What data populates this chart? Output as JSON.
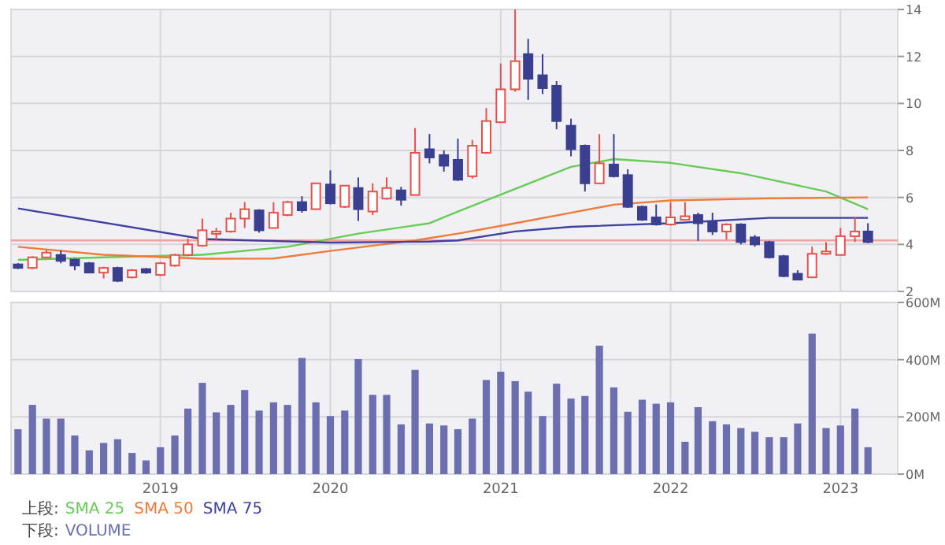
{
  "chart_data": [
    {
      "type": "candlestick",
      "annotations": [
        "上段:"
      ],
      "legend": "bottom",
      "grid": true,
      "tick_labels": "y",
      "xlim": [
        "2018-02-14",
        "2023-05-04"
      ],
      "xticks": [
        {
          "value": "2019-01",
          "label": null
        },
        {
          "value": "2020-01",
          "label": null
        },
        {
          "value": "2021-01",
          "label": null
        },
        {
          "value": "2022-01",
          "label": null
        },
        {
          "value": "2023-01",
          "label": null
        }
      ],
      "ylim": [
        2,
        14
      ],
      "yticks": [
        2,
        4,
        6,
        8,
        10,
        12,
        14
      ],
      "ref_lines": [
        {
          "axis": "y",
          "value": 4.17,
          "color": "#f4a0a0"
        }
      ],
      "x": [
        "2018-03",
        "2018-04",
        "2018-05",
        "2018-06",
        "2018-07",
        "2018-08",
        "2018-09",
        "2018-10",
        "2018-11",
        "2018-12",
        "2019-01",
        "2019-02",
        "2019-03",
        "2019-04",
        "2019-05",
        "2019-06",
        "2019-07",
        "2019-08",
        "2019-09",
        "2019-10",
        "2019-11",
        "2019-12",
        "2020-01",
        "2020-02",
        "2020-03",
        "2020-04",
        "2020-05",
        "2020-06",
        "2020-07",
        "2020-08",
        "2020-09",
        "2020-10",
        "2020-11",
        "2020-12",
        "2021-01",
        "2021-02",
        "2021-03",
        "2021-04",
        "2021-05",
        "2021-06",
        "2021-07",
        "2021-08",
        "2021-09",
        "2021-10",
        "2021-11",
        "2021-12",
        "2022-01",
        "2022-02",
        "2022-03",
        "2022-04",
        "2022-05",
        "2022-06",
        "2022-07",
        "2022-08",
        "2022-09",
        "2022-10",
        "2022-11",
        "2022-12",
        "2023-01",
        "2023-02",
        "2023-03"
      ],
      "ohlc": [
        [
          3.15,
          3.2,
          2.95,
          3.0
        ],
        [
          3.0,
          3.5,
          2.95,
          3.45
        ],
        [
          3.45,
          3.75,
          3.4,
          3.65
        ],
        [
          3.55,
          3.75,
          3.2,
          3.3
        ],
        [
          3.35,
          3.4,
          2.9,
          3.1
        ],
        [
          3.2,
          3.25,
          2.8,
          2.8
        ],
        [
          2.8,
          3.05,
          2.55,
          3.0
        ],
        [
          3.0,
          3.05,
          2.4,
          2.45
        ],
        [
          2.6,
          2.95,
          2.55,
          2.9
        ],
        [
          2.95,
          3.0,
          2.75,
          2.8
        ],
        [
          2.7,
          3.25,
          2.65,
          3.2
        ],
        [
          3.1,
          3.6,
          3.05,
          3.55
        ],
        [
          3.55,
          4.25,
          3.5,
          4.0
        ],
        [
          3.95,
          5.1,
          3.9,
          4.6
        ],
        [
          4.45,
          4.7,
          4.2,
          4.55
        ],
        [
          4.55,
          5.35,
          4.5,
          5.1
        ],
        [
          5.1,
          5.8,
          4.7,
          5.5
        ],
        [
          5.45,
          5.5,
          4.5,
          4.6
        ],
        [
          4.7,
          5.8,
          4.7,
          5.35
        ],
        [
          5.25,
          5.85,
          5.2,
          5.8
        ],
        [
          5.8,
          6.05,
          5.35,
          5.45
        ],
        [
          5.5,
          6.6,
          5.5,
          6.6
        ],
        [
          6.55,
          7.15,
          5.7,
          5.75
        ],
        [
          5.6,
          6.5,
          5.55,
          6.5
        ],
        [
          6.4,
          6.85,
          5.0,
          5.5
        ],
        [
          5.4,
          6.6,
          5.25,
          6.25
        ],
        [
          5.95,
          6.85,
          5.9,
          6.4
        ],
        [
          6.3,
          6.45,
          5.65,
          5.9
        ],
        [
          6.1,
          8.95,
          6.1,
          7.9
        ],
        [
          8.05,
          8.7,
          7.45,
          7.7
        ],
        [
          7.8,
          8.0,
          7.1,
          7.35
        ],
        [
          7.6,
          8.5,
          6.7,
          6.75
        ],
        [
          6.9,
          8.45,
          6.8,
          8.2
        ],
        [
          7.9,
          9.8,
          7.85,
          9.25
        ],
        [
          9.2,
          11.7,
          9.2,
          10.6
        ],
        [
          10.6,
          14.0,
          10.5,
          11.8
        ],
        [
          12.1,
          12.75,
          10.15,
          11.05
        ],
        [
          11.2,
          12.1,
          10.4,
          10.65
        ],
        [
          10.75,
          10.95,
          8.9,
          9.25
        ],
        [
          9.05,
          9.35,
          7.75,
          8.05
        ],
        [
          8.2,
          8.25,
          6.25,
          6.6
        ],
        [
          6.6,
          8.7,
          6.6,
          7.45
        ],
        [
          7.4,
          8.7,
          6.85,
          6.9
        ],
        [
          6.95,
          7.2,
          5.55,
          5.6
        ],
        [
          5.6,
          5.65,
          5.0,
          5.05
        ],
        [
          5.15,
          5.7,
          4.8,
          4.85
        ],
        [
          4.85,
          5.8,
          4.8,
          5.15
        ],
        [
          5.05,
          5.8,
          5.05,
          5.2
        ],
        [
          5.25,
          5.35,
          4.15,
          4.9
        ],
        [
          4.95,
          5.35,
          4.4,
          4.55
        ],
        [
          4.55,
          4.9,
          4.2,
          4.85
        ],
        [
          4.85,
          4.9,
          4.0,
          4.1
        ],
        [
          4.3,
          4.4,
          3.9,
          4.0
        ],
        [
          4.1,
          4.15,
          3.4,
          3.45
        ],
        [
          3.5,
          3.55,
          2.6,
          2.65
        ],
        [
          2.75,
          2.9,
          2.5,
          2.5
        ],
        [
          2.6,
          3.9,
          2.6,
          3.6
        ],
        [
          3.6,
          4.1,
          3.55,
          3.7
        ],
        [
          3.55,
          4.7,
          3.55,
          4.35
        ],
        [
          4.35,
          5.15,
          4.1,
          4.55
        ],
        [
          4.55,
          4.9,
          4.05,
          4.1
        ]
      ],
      "series": [
        {
          "name": "SMA 25",
          "color": "#66cc55",
          "type": "line",
          "x": [
            "2018-03",
            "2018-09",
            "2019-04",
            "2019-10",
            "2020-03",
            "2020-08",
            "2020-10",
            "2021-02",
            "2021-06",
            "2021-09",
            "2022-01",
            "2022-06",
            "2022-12",
            "2023-03"
          ],
          "values": [
            3.34,
            3.45,
            3.56,
            3.9,
            4.46,
            4.9,
            5.4,
            6.36,
            7.3,
            7.63,
            7.47,
            7.03,
            6.25,
            5.5
          ]
        },
        {
          "name": "SMA 50",
          "color": "#f07a3a",
          "type": "line",
          "x": [
            "2018-03",
            "2018-09",
            "2019-04",
            "2019-09",
            "2020-01",
            "2020-07",
            "2020-10",
            "2021-02",
            "2021-06",
            "2021-09",
            "2022-01",
            "2022-08",
            "2023-03"
          ],
          "values": [
            3.9,
            3.56,
            3.39,
            3.4,
            3.72,
            4.17,
            4.46,
            4.9,
            5.35,
            5.69,
            5.87,
            5.96,
            6.0
          ]
        },
        {
          "name": "SMA 75",
          "color": "#4040a0",
          "type": "line",
          "x": [
            "2018-03",
            "2019-04",
            "2020-01",
            "2020-08",
            "2020-10",
            "2021-02",
            "2021-06",
            "2022-01",
            "2022-08",
            "2023-03"
          ],
          "values": [
            5.53,
            4.23,
            4.08,
            4.12,
            4.17,
            4.55,
            4.75,
            4.9,
            5.13,
            5.13
          ]
        }
      ]
    },
    {
      "type": "bar",
      "annotations": [
        "下段:"
      ],
      "legend": "bottom",
      "grid": true,
      "xlim": [
        "2018-02-14",
        "2023-05-04"
      ],
      "xticks": [
        {
          "value": "2019-01",
          "label": "2019"
        },
        {
          "value": "2020-01",
          "label": "2020"
        },
        {
          "value": "2021-01",
          "label": "2021"
        },
        {
          "value": "2022-01",
          "label": "2022"
        },
        {
          "value": "2023-01",
          "label": "2023"
        }
      ],
      "ylim": [
        0,
        600
      ],
      "yticks": [
        {
          "value": 0,
          "label": "0M"
        },
        {
          "value": 200,
          "label": "200M"
        },
        {
          "value": 400,
          "label": "400M"
        },
        {
          "value": 600,
          "label": "600M"
        }
      ],
      "x": [
        "2018-03",
        "2018-04",
        "2018-05",
        "2018-06",
        "2018-07",
        "2018-08",
        "2018-09",
        "2018-10",
        "2018-11",
        "2018-12",
        "2019-01",
        "2019-02",
        "2019-03",
        "2019-04",
        "2019-05",
        "2019-06",
        "2019-07",
        "2019-08",
        "2019-09",
        "2019-10",
        "2019-11",
        "2019-12",
        "2020-01",
        "2020-02",
        "2020-03",
        "2020-04",
        "2020-05",
        "2020-06",
        "2020-07",
        "2020-08",
        "2020-09",
        "2020-10",
        "2020-11",
        "2020-12",
        "2021-01",
        "2021-02",
        "2021-03",
        "2021-04",
        "2021-05",
        "2021-06",
        "2021-07",
        "2021-08",
        "2021-09",
        "2021-10",
        "2021-11",
        "2021-12",
        "2022-01",
        "2022-02",
        "2022-03",
        "2022-04",
        "2022-05",
        "2022-06",
        "2022-07",
        "2022-08",
        "2022-09",
        "2022-10",
        "2022-11",
        "2022-12",
        "2023-01",
        "2023-02",
        "2023-03"
      ],
      "series": [
        {
          "name": "VOLUME",
          "color": "#6b6fb0",
          "values": [
            157,
            242,
            194,
            194,
            135,
            83,
            109,
            122,
            74,
            48,
            94,
            135,
            229,
            319,
            216,
            242,
            294,
            222,
            251,
            242,
            406,
            251,
            203,
            222,
            402,
            277,
            277,
            174,
            364,
            177,
            170,
            157,
            194,
            329,
            358,
            325,
            288,
            203,
            316,
            264,
            273,
            449,
            303,
            218,
            260,
            246,
            251,
            113,
            234,
            185,
            174,
            161,
            148,
            129,
            129,
            177,
            491,
            161,
            170,
            229,
            94
          ]
        }
      ]
    }
  ]
}
